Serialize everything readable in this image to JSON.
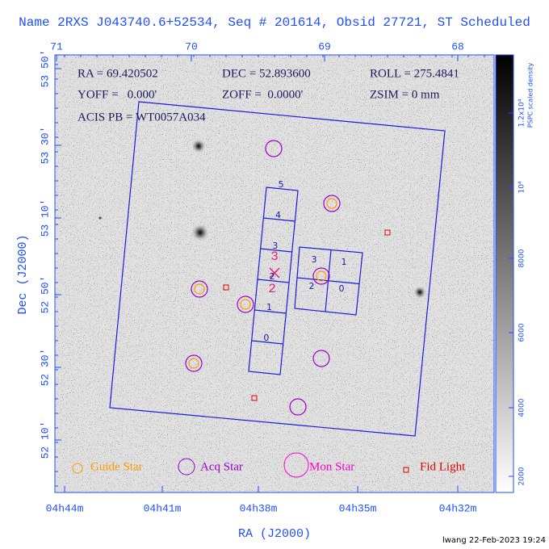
{
  "title": "Name 2RXS J043740.6+52534, Seq # 201614, Obsid 27721, ST Scheduled",
  "axes": {
    "top_ticks": [
      "71",
      "70",
      "69",
      "68"
    ],
    "bottom_ticks": [
      "04h44m",
      "04h41m",
      "04h38m",
      "04h35m",
      "04h32m"
    ],
    "left_ticks": [
      "53 50'",
      "53 30'",
      "53 10'",
      "52 50'",
      "52 30'",
      "52 10'"
    ],
    "x_label": "RA (J2000)",
    "y_label": "Dec (J2000)"
  },
  "colorbar": {
    "label": "PSPC scaled density",
    "ticks": [
      "2000",
      "4000",
      "6000",
      "8000",
      "10⁴",
      "1.2x10⁴"
    ]
  },
  "info": [
    "RA = 69.420502",
    "DEC = 52.893600",
    "ROLL = 275.4841",
    "YOFF =   0.000'",
    "ZOFF =  0.0000'",
    "ZSIM = 0 mm",
    "ACIS PB = WT0057A034"
  ],
  "acis_s_chips": [
    "0",
    "1",
    "2",
    "3",
    "4",
    "5"
  ],
  "acis_i_chips": [
    "0",
    "1",
    "2",
    "3"
  ],
  "aimpoint_labels": [
    "3",
    "2"
  ],
  "legend": [
    "Guide Star",
    "Acq Star",
    "Mon Star",
    "Fid Light"
  ],
  "footer": "lwang 22-Feb-2023 19:24"
}
